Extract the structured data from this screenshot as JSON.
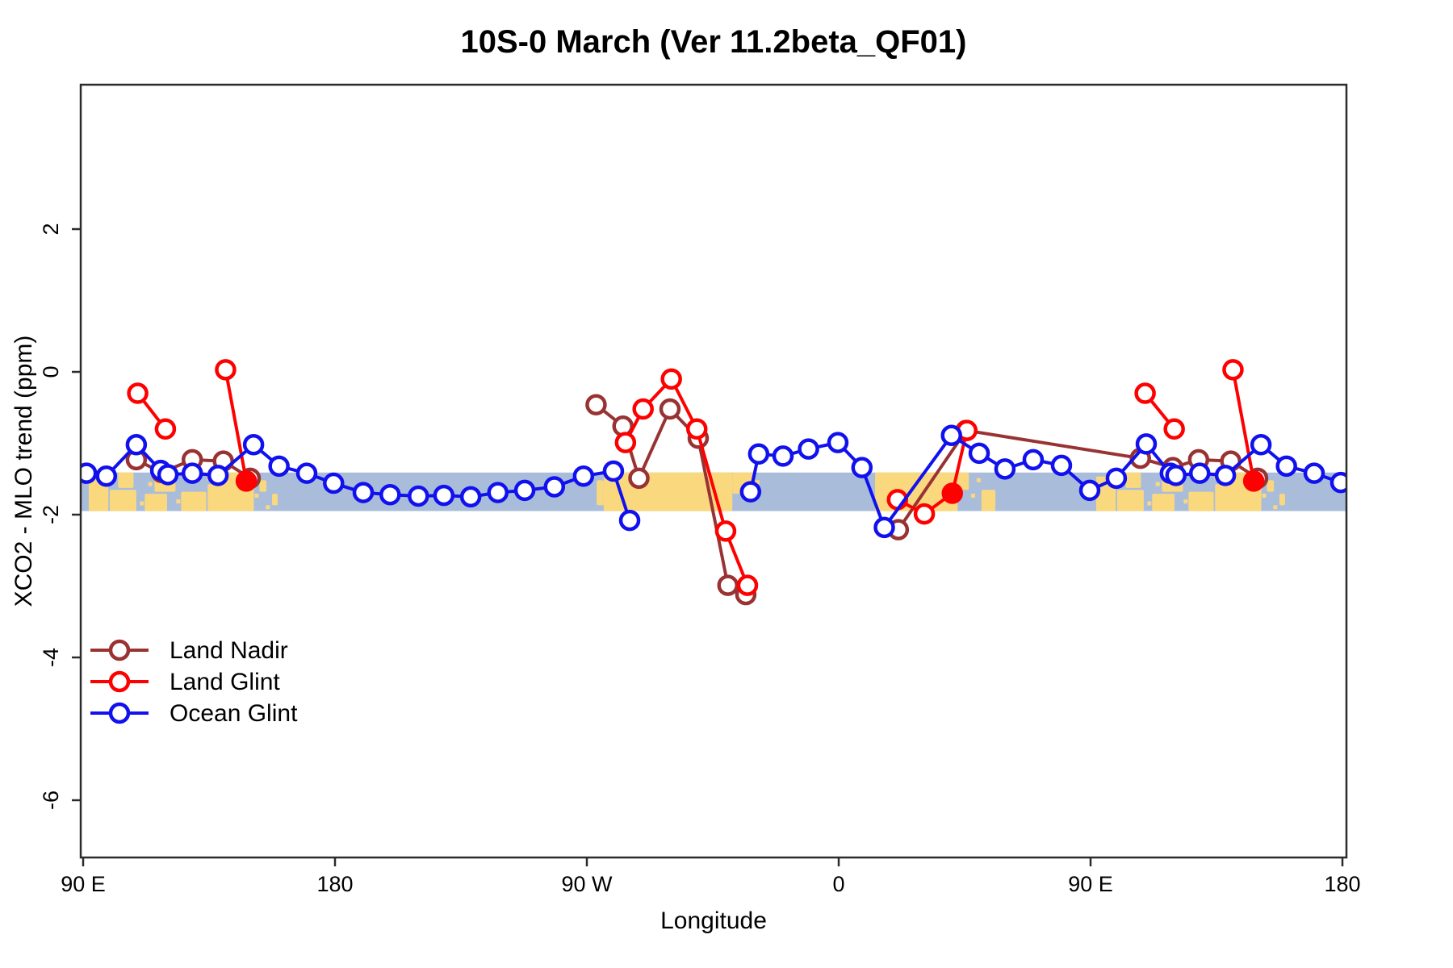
{
  "title": "10S-0 March (Ver 11.2beta_QF01)",
  "chart_data": {
    "type": "line",
    "title": "10S-0 March (Ver 11.2beta_QF01)",
    "xlabel": "Longitude",
    "ylabel": "XCO2 - MLO trend (ppm)",
    "x_axis": {
      "note": "x = degrees of longitude unwrapped eastward from 90E (0..450)",
      "tick_positions_deg": [
        0,
        90,
        180,
        270,
        360,
        450
      ],
      "tick_labels": [
        "90 E",
        "180",
        "90 W",
        "0",
        "90 E",
        "180"
      ]
    },
    "y_axis": {
      "tick_values": [
        2,
        0,
        -2,
        -4,
        -6
      ],
      "tick_labels": [
        "2",
        "0",
        "-2",
        "-4",
        "-6"
      ],
      "range_top": 4.0,
      "range_bottom": -6.8
    },
    "map_band": {
      "ocean_color": "#A9BDDB",
      "land_color": "#FAD87E",
      "value_top": -1.41,
      "value_bottom": -1.95,
      "land_patches": [
        [
          2,
          9,
          0.1,
          1
        ],
        [
          9.5,
          19,
          0.45,
          1
        ],
        [
          12.5,
          18,
          0,
          0.4
        ],
        [
          22,
          30,
          0.55,
          1
        ],
        [
          25.5,
          33,
          0.08,
          0.5
        ],
        [
          35,
          44,
          0.5,
          1
        ],
        [
          44.5,
          61,
          0.3,
          1
        ],
        [
          47,
          58,
          0,
          0.32
        ],
        [
          63,
          65.5,
          0.2,
          0.5
        ],
        [
          67.5,
          69.5,
          0.55,
          0.85
        ],
        [
          109,
          111,
          0.3,
          0.55
        ],
        [
          183.5,
          186,
          0.2,
          0.85
        ],
        [
          186,
          232,
          0,
          1
        ],
        [
          232,
          239.5,
          0,
          0.55
        ],
        [
          283,
          312.5,
          0,
          1
        ],
        [
          312.5,
          316.5,
          0,
          0.45
        ],
        [
          321,
          326,
          0.45,
          1
        ],
        [
          362,
          369,
          0.1,
          1
        ],
        [
          369.5,
          379,
          0.45,
          1
        ],
        [
          372.5,
          378,
          0,
          0.4
        ],
        [
          382,
          390,
          0.55,
          1
        ],
        [
          385.5,
          393,
          0.08,
          0.5
        ],
        [
          395,
          404,
          0.5,
          1
        ],
        [
          404.5,
          421,
          0.3,
          1
        ],
        [
          407,
          418,
          0,
          0.32
        ],
        [
          423,
          425.5,
          0.2,
          0.5
        ],
        [
          427.5,
          429.5,
          0.55,
          0.85
        ]
      ],
      "speckles": [
        [
          8,
          0.3
        ],
        [
          11,
          0.7
        ],
        [
          21,
          0.8
        ],
        [
          24,
          0.3
        ],
        [
          34,
          0.75
        ],
        [
          45,
          0.15
        ],
        [
          62,
          0.6
        ],
        [
          66,
          0.9
        ],
        [
          241,
          0.25
        ],
        [
          318,
          0.6
        ],
        [
          320,
          0.2
        ],
        [
          368,
          0.3
        ],
        [
          371,
          0.7
        ],
        [
          381,
          0.8
        ],
        [
          384,
          0.3
        ],
        [
          394,
          0.75
        ],
        [
          405,
          0.15
        ],
        [
          422,
          0.6
        ],
        [
          426,
          0.9
        ]
      ]
    },
    "series": [
      {
        "name": "Land Nadir",
        "color": "#993333",
        "segments": [
          [
            [
              19,
              -1.23
            ],
            [
              28,
              -1.41
            ],
            [
              39,
              -1.23
            ],
            [
              50.1,
              -1.25
            ],
            [
              59.7,
              -1.49
            ]
          ],
          [
            [
              183.3,
              -0.46
            ],
            [
              192.9,
              -0.76
            ],
            [
              198.6,
              -1.49
            ],
            [
              209.7,
              -0.52
            ],
            [
              219.8,
              -0.93
            ],
            [
              230.4,
              -2.99
            ],
            [
              236.8,
              -3.12
            ]
          ],
          [
            [
              291.3,
              -2.21
            ],
            [
              315.5,
              -0.82
            ],
            [
              377.8,
              -1.21
            ],
            [
              389.4,
              -1.34
            ],
            [
              398.6,
              -1.23
            ],
            [
              410.1,
              -1.25
            ],
            [
              419.7,
              -1.49
            ]
          ]
        ],
        "filled_points": []
      },
      {
        "name": "Land Glint",
        "color": "#FF0000",
        "segments": [
          [
            [
              19.5,
              -0.3
            ],
            [
              29.4,
              -0.8
            ]
          ],
          [
            [
              50.9,
              0.03
            ],
            [
              58.3,
              -1.53
            ]
          ],
          [
            [
              193.8,
              -0.99
            ],
            [
              200.1,
              -0.52
            ],
            [
              210.2,
              -0.1
            ],
            [
              219.3,
              -0.8
            ],
            [
              229.6,
              -2.23
            ],
            [
              237.4,
              -2.99
            ]
          ],
          [
            [
              291,
              -1.79
            ],
            [
              300.6,
              -1.99
            ],
            [
              310.6,
              -1.7
            ],
            [
              315.8,
              -0.82
            ]
          ],
          [
            [
              379.5,
              -0.3
            ],
            [
              389.9,
              -0.8
            ]
          ],
          [
            [
              410.9,
              0.03
            ],
            [
              418.3,
              -1.53
            ]
          ]
        ],
        "filled_points": [
          [
            58.3,
            -1.53
          ],
          [
            310.6,
            -1.7
          ],
          [
            418.3,
            -1.53
          ]
        ]
      },
      {
        "name": "Ocean Glint",
        "color": "#1111EE",
        "segments": [
          [
            [
              1.2,
              -1.42
            ],
            [
              8.3,
              -1.46
            ],
            [
              19,
              -1.02
            ],
            [
              27.7,
              -1.38
            ],
            [
              30.3,
              -1.44
            ],
            [
              39,
              -1.42
            ],
            [
              48.2,
              -1.45
            ],
            [
              60.9,
              -1.02
            ],
            [
              70,
              -1.32
            ],
            [
              79.9,
              -1.42
            ],
            [
              89.5,
              -1.56
            ],
            [
              100.1,
              -1.69
            ],
            [
              109.7,
              -1.72
            ],
            [
              119.8,
              -1.74
            ],
            [
              128.9,
              -1.73
            ],
            [
              138.5,
              -1.75
            ],
            [
              148.2,
              -1.69
            ],
            [
              157.8,
              -1.66
            ],
            [
              168.4,
              -1.61
            ],
            [
              178.8,
              -1.46
            ],
            [
              189.5,
              -1.39
            ],
            [
              195.3,
              -2.08
            ]
          ],
          [
            [
              238.5,
              -1.68
            ],
            [
              241.4,
              -1.15
            ],
            [
              250.1,
              -1.18
            ],
            [
              259.2,
              -1.08
            ],
            [
              269.7,
              -0.99
            ],
            [
              278.3,
              -1.34
            ],
            [
              286.3,
              -2.18
            ],
            [
              310.3,
              -0.89
            ],
            [
              320.2,
              -1.14
            ],
            [
              329.4,
              -1.36
            ],
            [
              339.5,
              -1.23
            ],
            [
              349.6,
              -1.31
            ],
            [
              359.7,
              -1.66
            ],
            [
              369.2,
              -1.49
            ],
            [
              379.9,
              -1.01
            ],
            [
              388.5,
              -1.42
            ],
            [
              390.5,
              -1.45
            ],
            [
              399,
              -1.42
            ],
            [
              408.2,
              -1.45
            ],
            [
              420.9,
              -1.02
            ],
            [
              430,
              -1.32
            ],
            [
              439.9,
              -1.42
            ],
            [
              449.4,
              -1.55
            ]
          ]
        ],
        "filled_points": []
      }
    ],
    "legend": {
      "position": "bottom-left",
      "items": [
        "Land Nadir",
        "Land Glint",
        "Ocean Glint"
      ]
    },
    "grid": false
  }
}
